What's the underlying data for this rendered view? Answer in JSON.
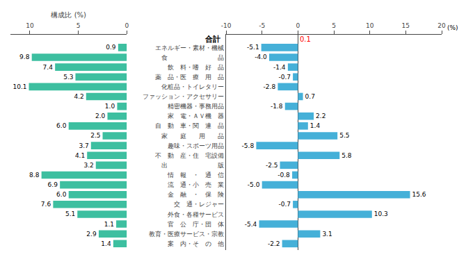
{
  "chart_data": [
    {
      "type": "bar",
      "orientation": "horizontal",
      "xlabel": "構成比 (%)",
      "categories": [
        "エネルギー・素材・機械",
        "食　　　　　　　　品",
        "飲　料・嗜　好　品",
        "薬　品・医　療　用　品",
        "化粧品・トイレタリー",
        "ファッション・アクセサリー",
        "精密機器・事務用品",
        "家　電・ＡＶ機　器",
        "自　動　車・関　連　品",
        "家　　庭　　用　　品",
        "趣味・スポーツ用品",
        "不　動　産・住　宅設備",
        "出　　　　　　　　版",
        "情　報　・　通　信",
        "流　通・小　売　業",
        "金　融　・　保　険",
        "交　通・レジャー",
        "外食・各種サービス",
        "官　公　庁・団　体",
        "教育・医療サービス・宗教",
        "案　内・そ　の　他"
      ],
      "values": [
        0.9,
        9.8,
        7.4,
        5.3,
        10.1,
        4.2,
        1.0,
        2.0,
        6.0,
        2.5,
        3.7,
        4.1,
        3.2,
        8.8,
        6.9,
        6.0,
        7.6,
        5.1,
        1.1,
        2.9,
        1.4
      ],
      "value_labels": [
        "0.9",
        "9.8",
        "7.4",
        "5.3",
        "10.1",
        "4.2",
        "1.0",
        "2.0",
        "6.0",
        "2.5",
        "3.7",
        "4.1",
        "3.2",
        "8.8",
        "6.9",
        "6.0",
        "7.6",
        "5.1",
        "1.1",
        "2.9",
        "1.4"
      ],
      "color": "#3dbfa0",
      "xlim": [
        12,
        0
      ],
      "xticks": [
        10,
        5,
        0
      ],
      "grid": false,
      "data_labels": true
    },
    {
      "type": "bar",
      "orientation": "horizontal",
      "categories": [
        "エネルギー・素材・機械",
        "食　　　　　　　　品",
        "飲　料・嗜　好　品",
        "薬　品・医　療　用　品",
        "化粧品・トイレタリー",
        "ファッション・アクセサリー",
        "精密機器・事務用品",
        "家　電・ＡＶ機　器",
        "自　動　車・関　連　品",
        "家　　庭　　用　　品",
        "趣味・スポーツ用品",
        "不　動　産・住　宅設備",
        "出　　　　　　　　版",
        "情　報　・　通　信",
        "流　通・小　売　業",
        "金　融　・　保　険",
        "交　通・レジャー",
        "外食・各種サービス",
        "官　公　庁・団　体",
        "教育・医療サービス・宗教",
        "案　内・そ　の　他"
      ],
      "values": [
        -5.1,
        -4.0,
        -1.4,
        -0.7,
        -2.8,
        0.7,
        -1.8,
        2.2,
        1.4,
        5.5,
        -5.8,
        5.8,
        -2.5,
        -0.8,
        -5.0,
        15.6,
        -0.7,
        10.3,
        -5.4,
        3.1,
        -2.2
      ],
      "value_labels": [
        "-5.1",
        "-4.0",
        "-1.4",
        "-0.7",
        "-2.8",
        "0.7",
        "-1.8",
        "2.2",
        "1.4",
        "5.5",
        "-5.8",
        "5.8",
        "-2.5",
        "-0.8",
        "-5.0",
        "15.6",
        "-0.7",
        "10.3",
        "-5.4",
        "3.1",
        "-2.2"
      ],
      "color": "#45b0d8",
      "xlim": [
        -10,
        20
      ],
      "xticks": [
        -10,
        -5,
        0,
        5,
        10,
        15,
        20
      ],
      "grid": false,
      "data_labels": true,
      "annotations": [
        {
          "text": "合計"
        },
        {
          "text": "0.1",
          "value": 0.1,
          "color": "#ff0000"
        },
        {
          "text": "(%)"
        }
      ]
    }
  ]
}
